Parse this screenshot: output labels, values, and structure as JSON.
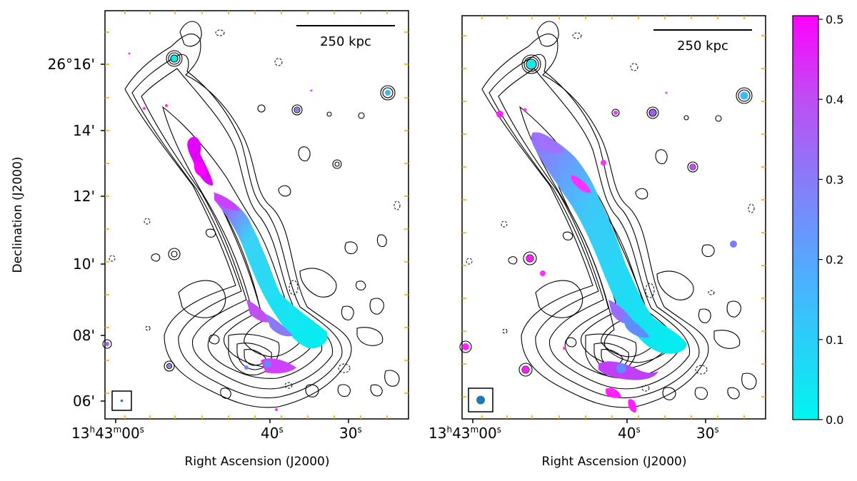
{
  "colors": {
    "colormap_low": "#00f5f0",
    "colormap_mid": "#8080ff",
    "colormap_high": "#ff00ff",
    "contour": "#000000",
    "tick": "#f2a900",
    "beam": "#1f77b4"
  },
  "panels": [
    {
      "scale_bar_label": "250 kpc",
      "beam": "small",
      "dec_ticks": [
        "26°16'",
        "14'",
        "12'",
        "10'",
        "08'",
        "06'"
      ],
      "ra_ticks": [
        "13h43m00s",
        "40s",
        "30s"
      ]
    },
    {
      "scale_bar_label": "250 kpc",
      "beam": "large",
      "dec_ticks": [],
      "ra_ticks": [
        "13h43m00s",
        "40s",
        "30s"
      ]
    }
  ],
  "axes": {
    "xlabel": "Right Ascension (J2000)",
    "ylabel": "Declination (J2000)"
  },
  "ra_tick_parts": {
    "h": "13",
    "h_unit": "h",
    "m": "43",
    "m_unit": "m",
    "s": "00",
    "s_unit": "s",
    "s40": "40",
    "s30": "30"
  },
  "colorbar": {
    "min": 0.0,
    "max": 0.5,
    "ticks": [
      "0.5",
      "0.4",
      "0.3",
      "0.2",
      "0.1",
      "0.0"
    ]
  }
}
